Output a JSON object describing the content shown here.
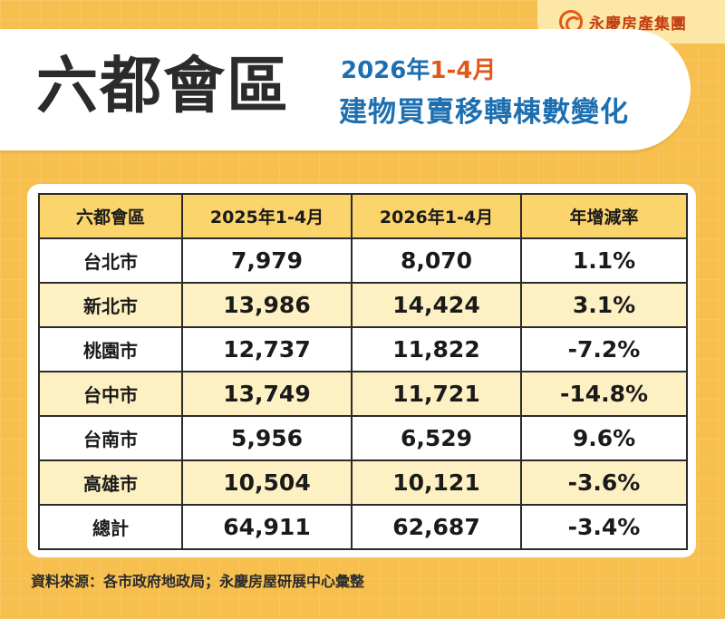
{
  "brand": {
    "name": "永慶房產集團",
    "logo_icon": "yongqing-logo-icon"
  },
  "title": {
    "main": "六都會區",
    "sub_year": "2026年",
    "sub_range": "1-4月",
    "sub_desc": "建物買賣移轉棟數變化"
  },
  "colors": {
    "accent_orange": "#e0581c",
    "title_blue": "#1d6fb0",
    "background": "#f7bf4e",
    "header_yellow": "#fbd56c"
  },
  "chart_data": {
    "type": "table",
    "columns": [
      "六都會區",
      "2025年1-4月",
      "2026年1-4月",
      "年增減率"
    ],
    "rows": [
      {
        "region": "台北市",
        "y2025": "7,979",
        "y2026": "8,070",
        "change": "1.1%"
      },
      {
        "region": "新北市",
        "y2025": "13,986",
        "y2026": "14,424",
        "change": "3.1%"
      },
      {
        "region": "桃園市",
        "y2025": "12,737",
        "y2026": "11,822",
        "change": "-7.2%"
      },
      {
        "region": "台中市",
        "y2025": "13,749",
        "y2026": "11,721",
        "change": "-14.8%"
      },
      {
        "region": "台南市",
        "y2025": "5,956",
        "y2026": "6,529",
        "change": "9.6%"
      },
      {
        "region": "高雄市",
        "y2025": "10,504",
        "y2026": "10,121",
        "change": "-3.6%"
      },
      {
        "region": "總計",
        "y2025": "64,911",
        "y2026": "62,687",
        "change": "-3.4%"
      }
    ]
  },
  "source": "資料來源：各市政府地政局；永慶房屋研展中心彙整"
}
